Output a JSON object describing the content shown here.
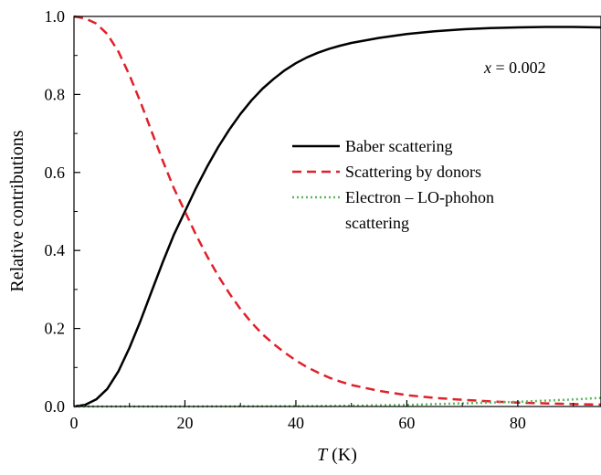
{
  "chart_data": {
    "type": "line",
    "xlabel_var": "T",
    "xlabel_unit": " (K)",
    "ylabel": "Relative contributions",
    "xlim": [
      0,
      95
    ],
    "ylim": [
      0,
      1.0
    ],
    "xticks": [
      0,
      20,
      40,
      60,
      80
    ],
    "xtick_labels": [
      "0",
      "20",
      "40",
      "60",
      "80"
    ],
    "yticks": [
      0,
      0.2,
      0.4,
      0.6,
      0.8,
      1.0
    ],
    "ytick_labels": [
      "0.0",
      "0.2",
      "0.4",
      "0.6",
      "0.8",
      "1.0"
    ],
    "grid": false,
    "legend_position": "center-right",
    "annotation": {
      "var": "x",
      "text": " = 0.002"
    },
    "series": [
      {
        "name": "Baber scattering",
        "color": "#000000",
        "style": "solid",
        "x": [
          0,
          2,
          4,
          6,
          8,
          10,
          12,
          14,
          16,
          18,
          20,
          22,
          24,
          26,
          28,
          30,
          32,
          34,
          36,
          38,
          40,
          42,
          44,
          46,
          48,
          50,
          55,
          60,
          65,
          70,
          75,
          80,
          85,
          90,
          95
        ],
        "y": [
          0.0,
          0.004,
          0.018,
          0.045,
          0.09,
          0.15,
          0.22,
          0.295,
          0.37,
          0.44,
          0.5,
          0.56,
          0.615,
          0.665,
          0.71,
          0.75,
          0.785,
          0.815,
          0.84,
          0.862,
          0.88,
          0.895,
          0.907,
          0.917,
          0.925,
          0.932,
          0.945,
          0.955,
          0.962,
          0.967,
          0.97,
          0.972,
          0.973,
          0.973,
          0.972
        ]
      },
      {
        "name": "Scattering by donors",
        "color": "#e0202a",
        "style": "dashed",
        "x": [
          0,
          2,
          4,
          6,
          8,
          10,
          12,
          14,
          16,
          18,
          20,
          22,
          24,
          26,
          28,
          30,
          32,
          34,
          36,
          38,
          40,
          42,
          44,
          46,
          48,
          50,
          55,
          60,
          65,
          70,
          75,
          80,
          85,
          90,
          95
        ],
        "y": [
          1.0,
          0.995,
          0.982,
          0.955,
          0.91,
          0.85,
          0.78,
          0.705,
          0.63,
          0.56,
          0.5,
          0.44,
          0.385,
          0.335,
          0.29,
          0.25,
          0.215,
          0.185,
          0.16,
          0.138,
          0.118,
          0.101,
          0.087,
          0.074,
          0.064,
          0.055,
          0.04,
          0.029,
          0.022,
          0.017,
          0.013,
          0.01,
          0.008,
          0.006,
          0.005
        ]
      },
      {
        "name": "Electron – LO-phohon",
        "name_line2": "scattering",
        "color": "#5cb85c",
        "style": "dotted",
        "x": [
          0,
          10,
          20,
          30,
          40,
          45,
          50,
          55,
          60,
          65,
          70,
          75,
          80,
          85,
          90,
          95
        ],
        "y": [
          0.0,
          0.0,
          0.0,
          0.0005,
          0.001,
          0.0015,
          0.002,
          0.003,
          0.004,
          0.006,
          0.008,
          0.01,
          0.012,
          0.015,
          0.018,
          0.022
        ]
      }
    ]
  }
}
